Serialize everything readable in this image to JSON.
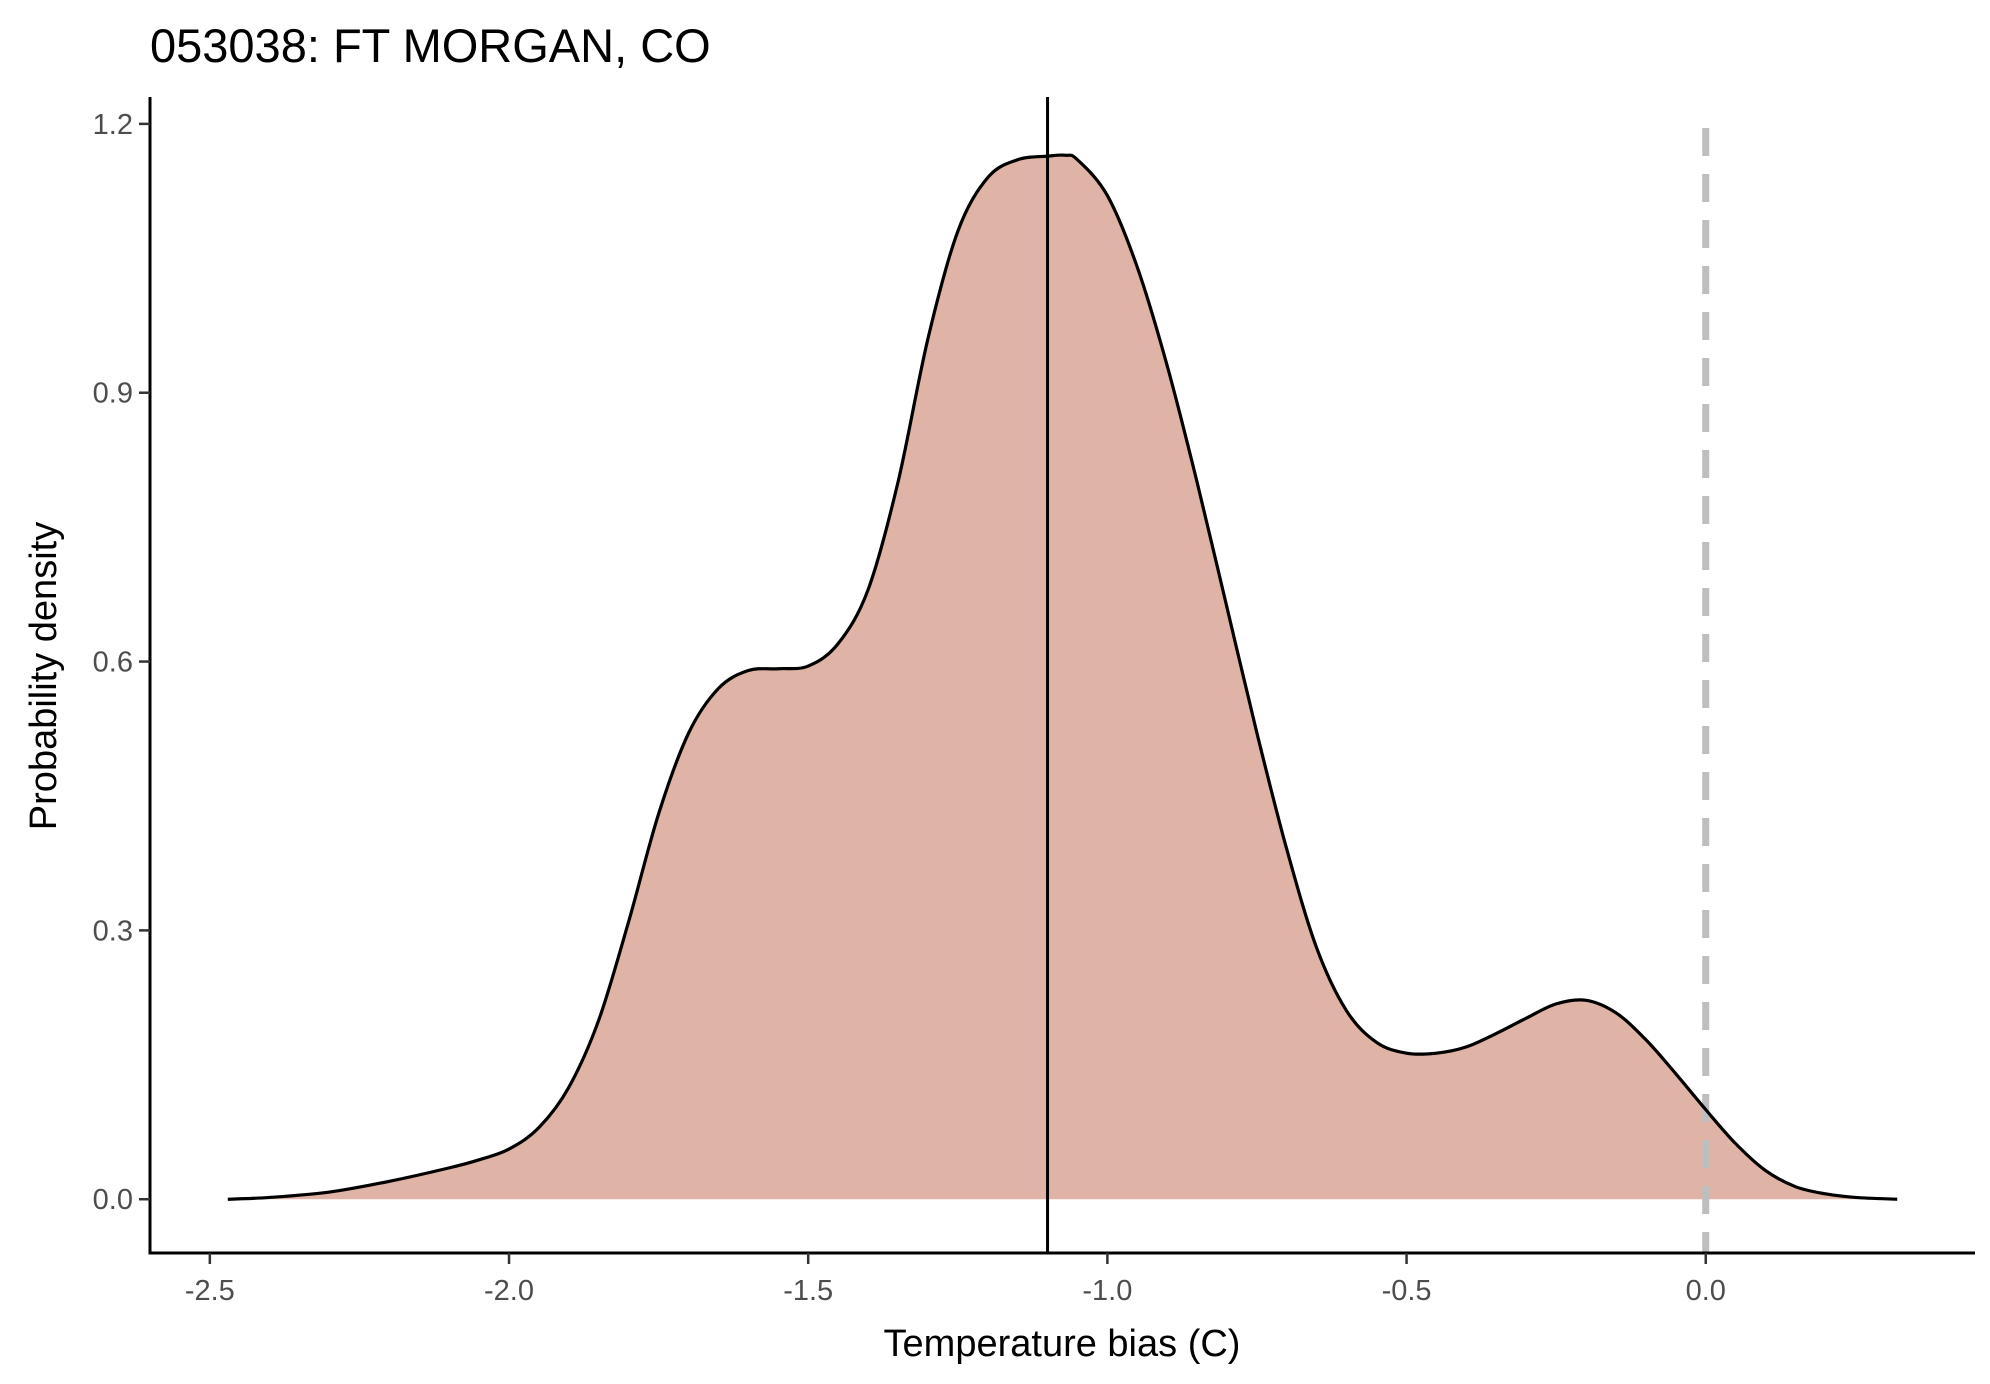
{
  "chart_data": {
    "type": "area",
    "title": "053038: FT MORGAN, CO",
    "xlabel": "Temperature bias (C)",
    "ylabel": "Probability density",
    "xlim": [
      -2.6,
      0.45
    ],
    "ylim": [
      -0.06,
      1.23
    ],
    "x_ticks": [
      -2.5,
      -2.0,
      -1.5,
      -1.0,
      -0.5,
      0.0
    ],
    "x_tick_labels": [
      "-2.5",
      "-2.0",
      "-1.5",
      "-1.0",
      "-0.5",
      "0.0"
    ],
    "y_ticks": [
      0.0,
      0.3,
      0.6,
      0.9,
      1.2
    ],
    "y_tick_labels": [
      "0.0",
      "0.3",
      "0.6",
      "0.9",
      "1.2"
    ],
    "grid": false,
    "fill_color": "#dfb3a5",
    "line_color": "#000000",
    "reference_lines": [
      {
        "kind": "solid",
        "x": -1.1,
        "color": "#000000"
      },
      {
        "kind": "dashed",
        "x": 0.0,
        "color": "#bebebe"
      }
    ],
    "series": [
      {
        "x": [
          -2.47,
          -2.4,
          -2.3,
          -2.2,
          -2.1,
          -2.05,
          -2.0,
          -1.95,
          -1.9,
          -1.85,
          -1.8,
          -1.75,
          -1.7,
          -1.65,
          -1.6,
          -1.55,
          -1.5,
          -1.45,
          -1.4,
          -1.35,
          -1.3,
          -1.25,
          -1.2,
          -1.15,
          -1.1,
          -1.07,
          -1.05,
          -1.0,
          -0.95,
          -0.9,
          -0.85,
          -0.8,
          -0.75,
          -0.7,
          -0.65,
          -0.6,
          -0.55,
          -0.5,
          -0.45,
          -0.4,
          -0.35,
          -0.3,
          -0.25,
          -0.2,
          -0.15,
          -0.1,
          -0.05,
          0.0,
          0.05,
          0.1,
          0.15,
          0.2,
          0.25,
          0.32
        ],
        "y": [
          0.0,
          0.002,
          0.008,
          0.02,
          0.035,
          0.044,
          0.056,
          0.08,
          0.125,
          0.2,
          0.31,
          0.43,
          0.52,
          0.57,
          0.59,
          0.592,
          0.595,
          0.62,
          0.68,
          0.8,
          0.96,
          1.08,
          1.14,
          1.16,
          1.164,
          1.165,
          1.16,
          1.12,
          1.04,
          0.93,
          0.8,
          0.66,
          0.52,
          0.39,
          0.28,
          0.21,
          0.175,
          0.163,
          0.163,
          0.17,
          0.185,
          0.202,
          0.218,
          0.222,
          0.208,
          0.178,
          0.14,
          0.1,
          0.062,
          0.032,
          0.014,
          0.006,
          0.002,
          0.0
        ]
      }
    ]
  }
}
